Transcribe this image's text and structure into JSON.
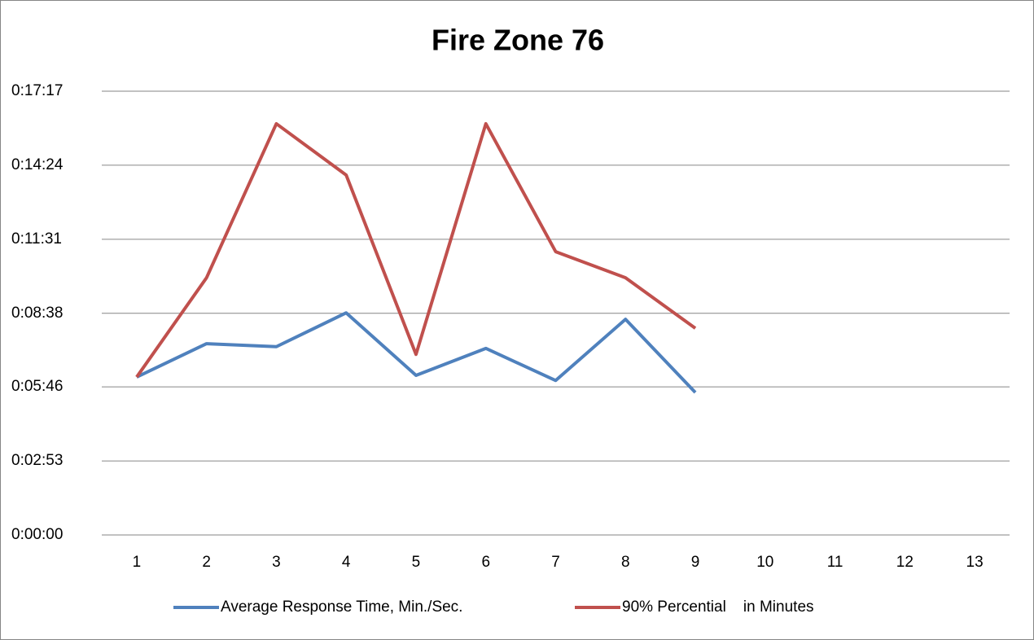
{
  "chart_data": {
    "type": "line",
    "title": "Fire Zone 76",
    "categories": [
      "1",
      "2",
      "3",
      "4",
      "5",
      "6",
      "7",
      "8",
      "9",
      "10",
      "11",
      "12",
      "13"
    ],
    "series": [
      {
        "name": "Average Response Time, Min./Sec.",
        "color": "#4f81bd",
        "values": [
          369,
          447,
          440,
          519,
          373,
          436,
          361,
          504,
          333,
          null,
          null,
          null,
          null
        ]
      },
      {
        "name": "90% Percential    in Minutes",
        "color": "#c0504d",
        "values": [
          369,
          601,
          961,
          841,
          422,
          961,
          662,
          601,
          483,
          null,
          null,
          null,
          null
        ]
      }
    ],
    "ylim": [
      0,
      1037
    ],
    "yticks": [
      {
        "value": 0,
        "label": "0:00:00"
      },
      {
        "value": 173,
        "label": "0:02:53"
      },
      {
        "value": 346,
        "label": "0:05:46"
      },
      {
        "value": 518,
        "label": "0:08:38"
      },
      {
        "value": 691,
        "label": "0:11:31"
      },
      {
        "value": 864,
        "label": "0:14:24"
      },
      {
        "value": 1037,
        "label": "0:17:17"
      }
    ],
    "grid": true,
    "legend": "bottom"
  }
}
